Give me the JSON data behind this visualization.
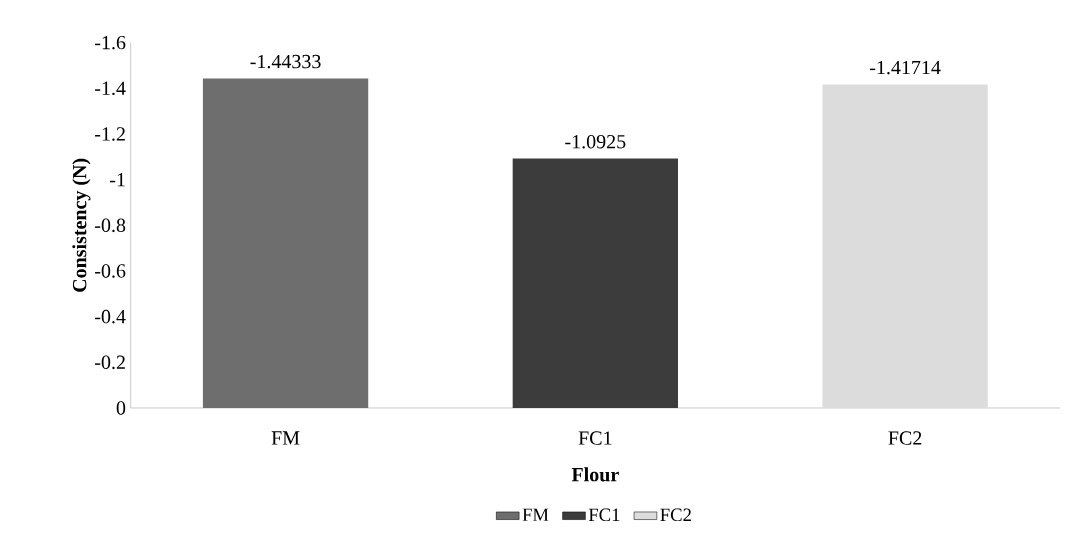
{
  "chart_data": {
    "type": "bar",
    "xlabel": "Flour",
    "ylabel": "Consistency (N)",
    "categories": [
      "FM",
      "FC1",
      "FC2"
    ],
    "series": [
      {
        "name": "FM",
        "color": "#6e6e6e",
        "values": [
          -1.44333,
          null,
          null
        ]
      },
      {
        "name": "FC1",
        "color": "#3c3c3c",
        "values": [
          null,
          -1.0925,
          null
        ]
      },
      {
        "name": "FC2",
        "color": "#dcdcdc",
        "values": [
          null,
          null,
          -1.41714
        ]
      }
    ],
    "ylim": [
      0,
      -1.6
    ],
    "yticks": [
      0,
      -0.2,
      -0.4,
      -0.6,
      -0.8,
      -1,
      -1.2,
      -1.4,
      -1.6
    ],
    "data_labels": true,
    "grid": false,
    "legend": "bottom"
  }
}
